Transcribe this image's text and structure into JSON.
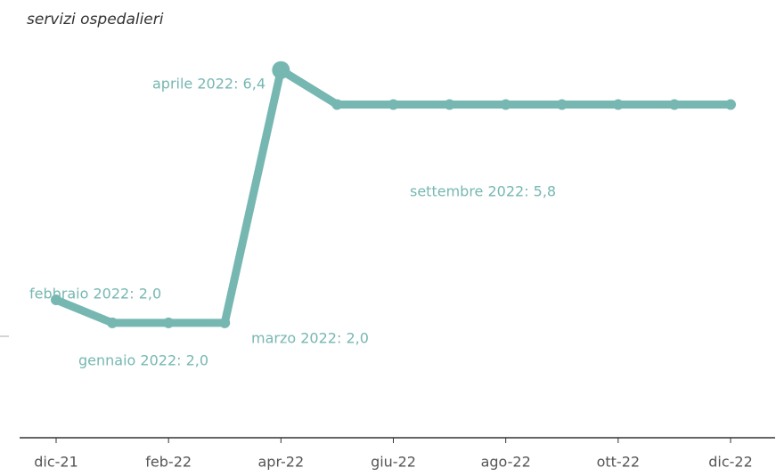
{
  "chart_data": {
    "type": "line",
    "title": "servizi ospedalieri",
    "categories": [
      "dic-21",
      null,
      "feb-22",
      null,
      "apr-22",
      null,
      "giu-22",
      null,
      "ago-22",
      null,
      "ott-22",
      null,
      "dic-22"
    ],
    "series": [
      {
        "name": "servizi ospedalieri",
        "color": "#76b7b2",
        "values": [
          2.4,
          2.0,
          2.0,
          2.0,
          6.4,
          5.8,
          5.8,
          5.8,
          5.8,
          5.8,
          5.8,
          5.8,
          5.8
        ]
      }
    ],
    "ylim": [
      0,
      7
    ],
    "annotations": [
      "febbraio 2022: 2,0",
      "gennaio 2022: 2,0",
      "marzo 2022: 2,0",
      "aprile 2022: 6,4",
      "settembre 2022: 5,8"
    ]
  }
}
